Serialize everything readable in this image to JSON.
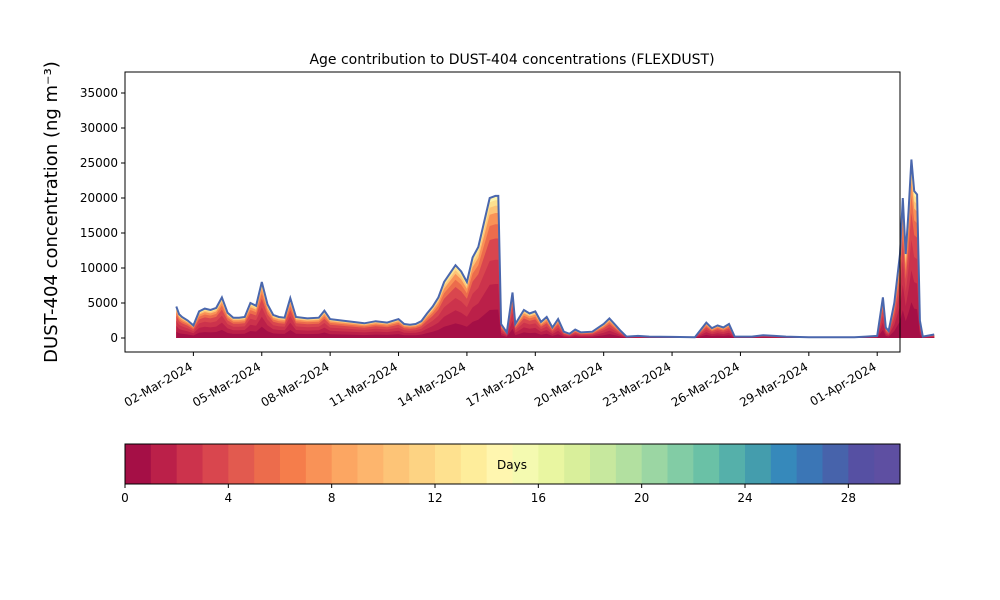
{
  "chart_data": {
    "type": "area",
    "title": "Age contribution to DUST-404 concentrations (FLEXDUST)",
    "ylabel": "DUST-404 concentration (ng m⁻³)",
    "xlabel": "",
    "x_start": "2024-02-28",
    "x_end": "2024-04-02",
    "ylim": [
      -2000,
      38000
    ],
    "yticks": [
      0,
      5000,
      10000,
      15000,
      20000,
      25000,
      30000,
      35000
    ],
    "xticks": [
      "02-Mar-2024",
      "05-Mar-2024",
      "08-Mar-2024",
      "11-Mar-2024",
      "14-Mar-2024",
      "17-Mar-2024",
      "20-Mar-2024",
      "23-Mar-2024",
      "26-Mar-2024",
      "29-Mar-2024",
      "01-Apr-2024"
    ],
    "grid": false,
    "stack_description": "stacked by age of dust in days (0-30), colored per colorbar",
    "total_series": {
      "name": "",
      "color": "#4a67ad",
      "points": [
        [
          "2024-03-01 06:00",
          4500
        ],
        [
          "2024-03-01 09:00",
          3400
        ],
        [
          "2024-03-01 12:00",
          3000
        ],
        [
          "2024-03-01 18:00",
          2500
        ],
        [
          "2024-03-02 00:00",
          1800
        ],
        [
          "2024-03-02 06:00",
          3800
        ],
        [
          "2024-03-02 12:00",
          4200
        ],
        [
          "2024-03-02 18:00",
          4000
        ],
        [
          "2024-03-03 00:00",
          4300
        ],
        [
          "2024-03-03 06:00",
          5800
        ],
        [
          "2024-03-03 12:00",
          3600
        ],
        [
          "2024-03-03 18:00",
          2900
        ],
        [
          "2024-03-04 00:00",
          2900
        ],
        [
          "2024-03-04 06:00",
          3000
        ],
        [
          "2024-03-04 12:00",
          5000
        ],
        [
          "2024-03-04 18:00",
          4600
        ],
        [
          "2024-03-05 00:00",
          8000
        ],
        [
          "2024-03-05 06:00",
          4800
        ],
        [
          "2024-03-05 12:00",
          3300
        ],
        [
          "2024-03-05 18:00",
          3000
        ],
        [
          "2024-03-06 00:00",
          2900
        ],
        [
          "2024-03-06 06:00",
          5700
        ],
        [
          "2024-03-06 12:00",
          3000
        ],
        [
          "2024-03-07 00:00",
          2800
        ],
        [
          "2024-03-07 12:00",
          2900
        ],
        [
          "2024-03-07 18:00",
          3900
        ],
        [
          "2024-03-08 00:00",
          2700
        ],
        [
          "2024-03-08 12:00",
          2500
        ],
        [
          "2024-03-09 00:00",
          2300
        ],
        [
          "2024-03-09 12:00",
          2100
        ],
        [
          "2024-03-10 00:00",
          2400
        ],
        [
          "2024-03-10 12:00",
          2200
        ],
        [
          "2024-03-11 00:00",
          2700
        ],
        [
          "2024-03-11 06:00",
          2000
        ],
        [
          "2024-03-11 12:00",
          1900
        ],
        [
          "2024-03-11 18:00",
          2000
        ],
        [
          "2024-03-12 00:00",
          2400
        ],
        [
          "2024-03-12 06:00",
          3500
        ],
        [
          "2024-03-12 12:00",
          4500
        ],
        [
          "2024-03-12 18:00",
          5800
        ],
        [
          "2024-03-13 00:00",
          8000
        ],
        [
          "2024-03-13 06:00",
          9200
        ],
        [
          "2024-03-13 12:00",
          10400
        ],
        [
          "2024-03-13 18:00",
          9500
        ],
        [
          "2024-03-14 00:00",
          8000
        ],
        [
          "2024-03-14 06:00",
          11500
        ],
        [
          "2024-03-14 12:00",
          13000
        ],
        [
          "2024-03-14 18:00",
          16500
        ],
        [
          "2024-03-15 00:00",
          20000
        ],
        [
          "2024-03-15 06:00",
          20300
        ],
        [
          "2024-03-15 09:00",
          20300
        ],
        [
          "2024-03-15 12:00",
          2000
        ],
        [
          "2024-03-15 18:00",
          800
        ],
        [
          "2024-03-16 00:00",
          6500
        ],
        [
          "2024-03-16 03:00",
          2000
        ],
        [
          "2024-03-16 12:00",
          4000
        ],
        [
          "2024-03-16 18:00",
          3500
        ],
        [
          "2024-03-17 00:00",
          3800
        ],
        [
          "2024-03-17 06:00",
          2300
        ],
        [
          "2024-03-17 12:00",
          3000
        ],
        [
          "2024-03-17 18:00",
          1500
        ],
        [
          "2024-03-18 00:00",
          2700
        ],
        [
          "2024-03-18 06:00",
          900
        ],
        [
          "2024-03-18 12:00",
          600
        ],
        [
          "2024-03-18 18:00",
          1200
        ],
        [
          "2024-03-19 00:00",
          800
        ],
        [
          "2024-03-19 12:00",
          900
        ],
        [
          "2024-03-20 00:00",
          2000
        ],
        [
          "2024-03-20 06:00",
          2800
        ],
        [
          "2024-03-20 12:00",
          1900
        ],
        [
          "2024-03-20 18:00",
          1000
        ],
        [
          "2024-03-21 00:00",
          200
        ],
        [
          "2024-03-21 12:00",
          300
        ],
        [
          "2024-03-22 00:00",
          200
        ],
        [
          "2024-03-23 00:00",
          150
        ],
        [
          "2024-03-24 00:00",
          100
        ],
        [
          "2024-03-24 12:00",
          2200
        ],
        [
          "2024-03-24 18:00",
          1400
        ],
        [
          "2024-03-25 00:00",
          1800
        ],
        [
          "2024-03-25 06:00",
          1500
        ],
        [
          "2024-03-25 12:00",
          2000
        ],
        [
          "2024-03-25 18:00",
          200
        ],
        [
          "2024-03-26 12:00",
          200
        ],
        [
          "2024-03-27 00:00",
          400
        ],
        [
          "2024-03-27 12:00",
          300
        ],
        [
          "2024-03-28 00:00",
          200
        ],
        [
          "2024-03-29 00:00",
          100
        ],
        [
          "2024-03-30 00:00",
          100
        ],
        [
          "2024-03-31 00:00",
          100
        ],
        [
          "2024-03-31 12:00",
          200
        ],
        [
          "2024-04-01 00:00",
          300
        ],
        [
          "2024-04-01 06:00",
          5800
        ],
        [
          "2024-04-01 09:00",
          1500
        ],
        [
          "2024-04-01 12:00",
          1000
        ],
        [
          "2024-04-01 18:00",
          5000
        ],
        [
          "2024-04-02 00:00",
          12000
        ],
        [
          "2024-04-02 03:00",
          20000
        ],
        [
          "2024-04-02 06:00",
          12000
        ],
        [
          "2024-04-02 09:00",
          18000
        ],
        [
          "2024-04-02 12:00",
          25500
        ],
        [
          "2024-04-02 15:00",
          21000
        ],
        [
          "2024-04-02 18:00",
          20500
        ],
        [
          "2024-04-02 21:00",
          2500
        ],
        [
          "2024-04-03 00:00",
          200
        ],
        [
          "2024-04-03 12:00",
          500
        ]
      ]
    },
    "colorbar": {
      "label": "Days",
      "min": 0,
      "max": 30,
      "ticks": [
        0,
        4,
        8,
        12,
        16,
        20,
        24,
        28
      ],
      "colors": [
        "#a50f46",
        "#bb2049",
        "#cc334c",
        "#d9464e",
        "#e25a4f",
        "#ec6c4c",
        "#f57d4b",
        "#f99257",
        "#fca662",
        "#fdb56d",
        "#fdc477",
        "#fdd383",
        "#fee18f",
        "#feed9b",
        "#fff6af",
        "#f4fab0",
        "#e9f6a1",
        "#d9ef9b",
        "#c7e89e",
        "#b2e0a0",
        "#9bd6a3",
        "#82cca5",
        "#6ac1a6",
        "#55b0aa",
        "#449dad",
        "#3689bb",
        "#3b76b6",
        "#4763ab",
        "#5650a3",
        "#5e4fa2"
      ]
    }
  }
}
